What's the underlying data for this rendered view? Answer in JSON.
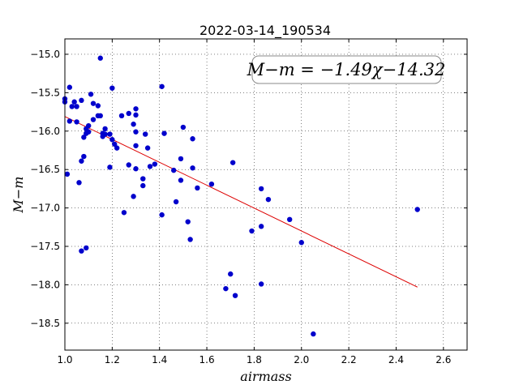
{
  "chart_data": {
    "type": "scatter",
    "title": "2022-03-14_190534",
    "xlabel": "airmass",
    "ylabel": "M−m",
    "xlim": [
      1.0,
      2.7
    ],
    "ylim": [
      -18.85,
      -14.8
    ],
    "x_ticks": [
      1.0,
      1.2,
      1.4,
      1.6,
      1.8,
      2.0,
      2.2,
      2.4,
      2.6
    ],
    "x_tick_labels": [
      "1.0",
      "1.2",
      "1.4",
      "1.6",
      "1.8",
      "2.0",
      "2.2",
      "2.4",
      "2.6"
    ],
    "y_ticks": [
      -15.0,
      -15.5,
      -16.0,
      -16.5,
      -17.0,
      -17.5,
      -18.0,
      -18.5
    ],
    "y_tick_labels": [
      "−15.0",
      "−15.5",
      "−16.0",
      "−16.5",
      "−17.0",
      "−17.5",
      "−18.0",
      "−18.5"
    ],
    "grid": true,
    "annotation": "M−m = −1.49χ−14.32",
    "annotation_position": "top-right",
    "colors": {
      "points": "#0000cc",
      "fit": "#dd0000"
    },
    "fit_line": {
      "slope": -1.49,
      "intercept": -14.32,
      "x_range": [
        1.0,
        2.49
      ]
    },
    "points": [
      [
        1.0,
        -15.58
      ],
      [
        1.0,
        -15.62
      ],
      [
        1.02,
        -15.43
      ],
      [
        1.03,
        -15.68
      ],
      [
        1.04,
        -15.62
      ],
      [
        1.05,
        -15.68
      ],
      [
        1.02,
        -15.87
      ],
      [
        1.05,
        -15.88
      ],
      [
        1.01,
        -16.56
      ],
      [
        1.06,
        -16.67
      ],
      [
        1.07,
        -16.39
      ],
      [
        1.08,
        -16.33
      ],
      [
        1.07,
        -15.6
      ],
      [
        1.08,
        -16.08
      ],
      [
        1.09,
        -15.97
      ],
      [
        1.09,
        -16.03
      ],
      [
        1.1,
        -15.93
      ],
      [
        1.1,
        -16.01
      ],
      [
        1.12,
        -15.85
      ],
      [
        1.11,
        -15.52
      ],
      [
        1.12,
        -15.64
      ],
      [
        1.14,
        -15.67
      ],
      [
        1.14,
        -15.8
      ],
      [
        1.15,
        -15.8
      ],
      [
        1.15,
        -15.05
      ],
      [
        1.16,
        -16.07
      ],
      [
        1.16,
        -16.03
      ],
      [
        1.17,
        -15.97
      ],
      [
        1.17,
        -16.04
      ],
      [
        1.19,
        -16.04
      ],
      [
        1.2,
        -16.11
      ],
      [
        1.2,
        -15.44
      ],
      [
        1.21,
        -16.17
      ],
      [
        1.22,
        -16.22
      ],
      [
        1.19,
        -16.47
      ],
      [
        1.07,
        -17.56
      ],
      [
        1.09,
        -17.52
      ],
      [
        1.24,
        -15.8
      ],
      [
        1.25,
        -17.06
      ],
      [
        1.27,
        -15.77
      ],
      [
        1.27,
        -16.44
      ],
      [
        1.29,
        -15.91
      ],
      [
        1.3,
        -15.71
      ],
      [
        1.3,
        -15.79
      ],
      [
        1.3,
        -16.01
      ],
      [
        1.3,
        -16.19
      ],
      [
        1.3,
        -16.49
      ],
      [
        1.29,
        -16.85
      ],
      [
        1.33,
        -16.62
      ],
      [
        1.33,
        -16.71
      ],
      [
        1.34,
        -16.04
      ],
      [
        1.35,
        -16.22
      ],
      [
        1.36,
        -16.46
      ],
      [
        1.38,
        -16.43
      ],
      [
        1.41,
        -15.42
      ],
      [
        1.42,
        -16.03
      ],
      [
        1.41,
        -17.09
      ],
      [
        1.46,
        -16.51
      ],
      [
        1.47,
        -16.92
      ],
      [
        1.49,
        -16.64
      ],
      [
        1.49,
        -16.36
      ],
      [
        1.5,
        -15.95
      ],
      [
        1.52,
        -17.18
      ],
      [
        1.53,
        -17.41
      ],
      [
        1.54,
        -16.1
      ],
      [
        1.54,
        -16.48
      ],
      [
        1.56,
        -16.74
      ],
      [
        1.62,
        -16.69
      ],
      [
        1.68,
        -18.05
      ],
      [
        1.7,
        -17.86
      ],
      [
        1.71,
        -16.41
      ],
      [
        1.72,
        -18.14
      ],
      [
        1.79,
        -17.3
      ],
      [
        1.83,
        -16.75
      ],
      [
        1.83,
        -17.24
      ],
      [
        1.83,
        -17.99
      ],
      [
        1.86,
        -16.89
      ],
      [
        1.95,
        -17.15
      ],
      [
        2.0,
        -17.45
      ],
      [
        2.05,
        -18.64
      ],
      [
        2.49,
        -17.02
      ]
    ]
  }
}
